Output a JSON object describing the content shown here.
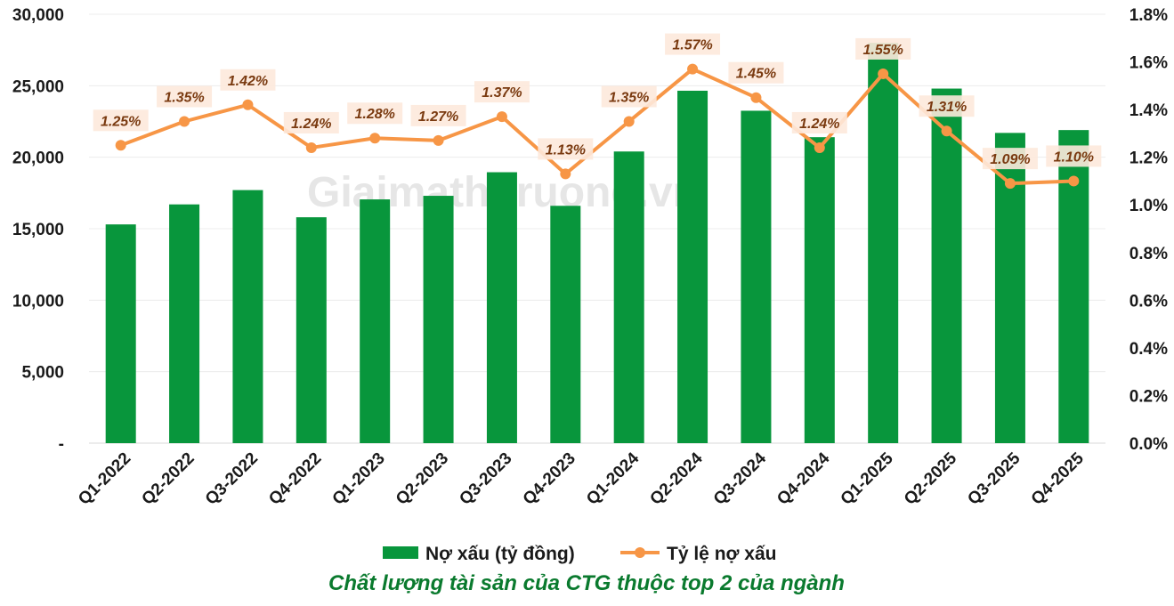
{
  "watermark": "Giaimathitruong.vn",
  "caption": "Chất lượng tài sản của CTG thuộc top 2 của ngành",
  "colors": {
    "bar": "#08963c",
    "line": "#f79646",
    "label_bg": "#fde9dc",
    "label_text": "#7a3a10",
    "caption": "#0a7a2e"
  },
  "chart_data": {
    "type": "bar",
    "categories": [
      "Q1-2022",
      "Q2-2022",
      "Q3-2022",
      "Q4-2022",
      "Q1-2023",
      "Q2-2023",
      "Q3-2023",
      "Q4-2023",
      "Q1-2024",
      "Q2-2024",
      "Q3-2024",
      "Q4-2024",
      "Q1-2025",
      "Q2-2025",
      "Q3-2025",
      "Q4-2025"
    ],
    "series": [
      {
        "name": "Nợ xấu (tỷ đồng)",
        "type": "bar",
        "axis": "left",
        "values": [
          15300,
          16700,
          17700,
          15800,
          17050,
          17300,
          18950,
          16600,
          20400,
          24650,
          23250,
          21400,
          28000,
          24800,
          21700,
          21900
        ]
      },
      {
        "name": "Tỷ lệ nợ xấu",
        "type": "line",
        "axis": "right",
        "values": [
          1.25,
          1.35,
          1.42,
          1.24,
          1.28,
          1.27,
          1.37,
          1.13,
          1.35,
          1.57,
          1.45,
          1.24,
          1.55,
          1.31,
          1.09,
          1.1
        ],
        "labels": [
          "1.25%",
          "1.35%",
          "1.42%",
          "1.24%",
          "1.28%",
          "1.27%",
          "1.37%",
          "1.13%",
          "1.35%",
          "1.57%",
          "1.45%",
          "1.24%",
          "1.55%",
          "1.31%",
          "1.09%",
          "1.10%"
        ]
      }
    ],
    "y_left": {
      "ylim": [
        0,
        30000
      ],
      "ticks": [
        0,
        5000,
        10000,
        15000,
        20000,
        25000,
        30000
      ],
      "tick_labels": [
        "-",
        "5,000",
        "10,000",
        "15,000",
        "20,000",
        "25,000",
        "30,000"
      ]
    },
    "y_right": {
      "ylim": [
        0,
        1.8
      ],
      "ticks": [
        0,
        0.2,
        0.4,
        0.6,
        0.8,
        1.0,
        1.2,
        1.4,
        1.6,
        1.8
      ],
      "tick_labels": [
        "0.0%",
        "0.2%",
        "0.4%",
        "0.6%",
        "0.8%",
        "1.0%",
        "1.2%",
        "1.4%",
        "1.6%",
        "1.8%"
      ]
    },
    "grid": true,
    "legend": "bottom"
  }
}
